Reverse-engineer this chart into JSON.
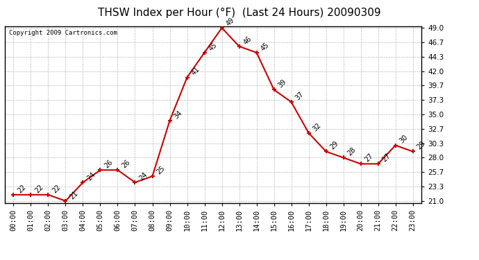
{
  "title": "THSW Index per Hour (°F)  (Last 24 Hours) 20090309",
  "copyright": "Copyright 2009 Cartronics.com",
  "hours": [
    "00:00",
    "01:00",
    "02:00",
    "03:00",
    "04:00",
    "05:00",
    "06:00",
    "07:00",
    "08:00",
    "09:00",
    "10:00",
    "11:00",
    "12:00",
    "13:00",
    "14:00",
    "15:00",
    "16:00",
    "17:00",
    "18:00",
    "19:00",
    "20:00",
    "21:00",
    "22:00",
    "23:00"
  ],
  "values": [
    22,
    22,
    22,
    21,
    24,
    26,
    26,
    24,
    25,
    34,
    41,
    45,
    49,
    46,
    45,
    39,
    37,
    32,
    29,
    28,
    27,
    27,
    30,
    29
  ],
  "ylim_min": 21.0,
  "ylim_max": 49.0,
  "yticks": [
    21.0,
    23.3,
    25.7,
    28.0,
    30.3,
    32.7,
    35.0,
    37.3,
    39.7,
    42.0,
    44.3,
    46.7,
    49.0
  ],
  "line_color": "#cc0000",
  "marker_color": "#cc0000",
  "bg_color": "#ffffff",
  "plot_bg_color": "#ffffff",
  "grid_color": "#bbbbbb",
  "title_fontsize": 11,
  "tick_fontsize": 7.5,
  "annotation_fontsize": 7,
  "copyright_fontsize": 6.5
}
